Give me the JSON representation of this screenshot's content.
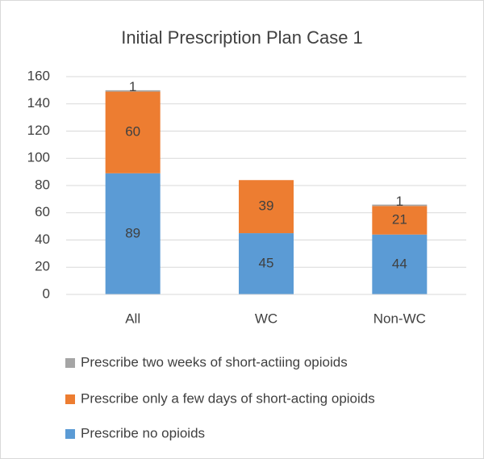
{
  "chart_data": {
    "type": "bar",
    "stacked": true,
    "title": "Initial Prescription Plan Case 1",
    "categories": [
      "All",
      "WC",
      "Non-WC"
    ],
    "series": [
      {
        "name": "Prescribe no opioids",
        "color": "#5b9bd5",
        "values": [
          89,
          45,
          44
        ]
      },
      {
        "name": "Prescribe only a few days of short-acting opioids",
        "color": "#ed7d31",
        "values": [
          60,
          39,
          21
        ]
      },
      {
        "name": "Prescribe two weeks of short-actiing opioids",
        "color": "#a5a5a5",
        "values": [
          1,
          null,
          1
        ]
      }
    ],
    "ylim": [
      0,
      160
    ],
    "yticks": [
      0,
      20,
      40,
      60,
      80,
      100,
      120,
      140,
      160
    ],
    "grid": true
  }
}
